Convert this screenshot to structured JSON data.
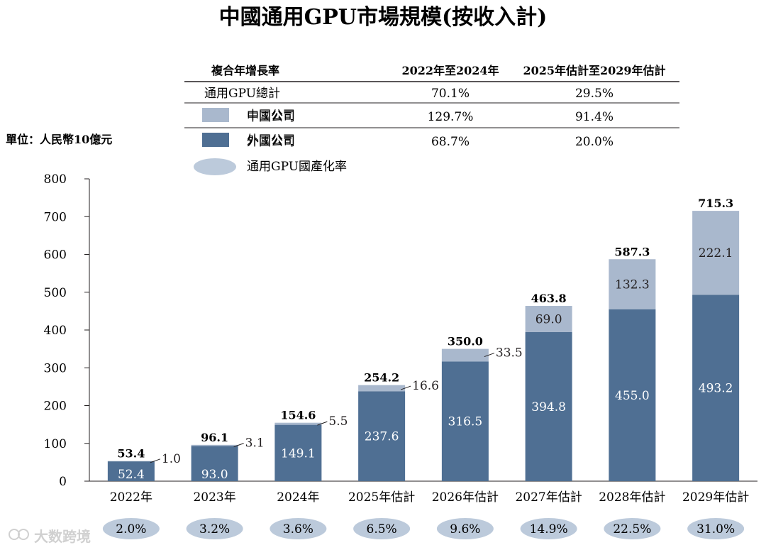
{
  "chart_data": {
    "type": "bar",
    "stacked": true,
    "title": "中國通用GPU市場規模(按收入計)",
    "unit_label": "單位：人民幣10億元",
    "categories": [
      "2022年",
      "2023年",
      "2024年",
      "2025年估計",
      "2026年估計",
      "2027年估計",
      "2028年估計",
      "2029年估計"
    ],
    "series": [
      {
        "name": "外國公司",
        "color": "#4f6f93",
        "values": [
          52.4,
          93.0,
          149.1,
          237.6,
          316.5,
          394.8,
          455.0,
          493.2
        ],
        "labels": [
          "52.4",
          "93.0",
          "149.1",
          "237.6",
          "316.5",
          "394.8",
          "455.0",
          "493.2"
        ]
      },
      {
        "name": "中國公司",
        "color": "#a9b8cd",
        "values": [
          1.0,
          3.1,
          5.5,
          16.6,
          33.5,
          69.0,
          132.3,
          222.1
        ],
        "labels": [
          "1.0",
          "3.1",
          "5.5",
          "16.6",
          "33.5",
          "69.0",
          "132.3",
          "222.1"
        ]
      }
    ],
    "totals": [
      "53.4",
      "96.1",
      "154.6",
      "254.2",
      "350.0",
      "463.8",
      "587.3",
      "715.3"
    ],
    "localization_series": {
      "name": "通用GPU國產化率",
      "values": [
        "2.0%",
        "3.2%",
        "3.6%",
        "6.5%",
        "9.6%",
        "14.9%",
        "22.5%",
        "31.0%"
      ]
    },
    "ylim": [
      0,
      800
    ],
    "yticks": [
      "0",
      "100",
      "200",
      "300",
      "400",
      "500",
      "600",
      "700",
      "800"
    ],
    "cagr_table": {
      "header": [
        "複合年增長率",
        "2022年至2024年",
        "2025年估計至2029年估計"
      ],
      "rows": [
        {
          "label": "通用GPU總計",
          "values": [
            "70.1%",
            "29.5%"
          ]
        },
        {
          "label": "中國公司",
          "values": [
            "129.7%",
            "91.4%"
          ]
        },
        {
          "label": "外國公司",
          "values": [
            "68.7%",
            "20.0%"
          ]
        }
      ]
    },
    "legend": [
      "中國公司",
      "外國公司",
      "通用GPU國產化率"
    ]
  },
  "colors": {
    "foreign": "#4f6f93",
    "china": "#a9b8cd",
    "ellipse": "#bccadb",
    "text": "#231f20"
  },
  "watermark": "大数跨境"
}
